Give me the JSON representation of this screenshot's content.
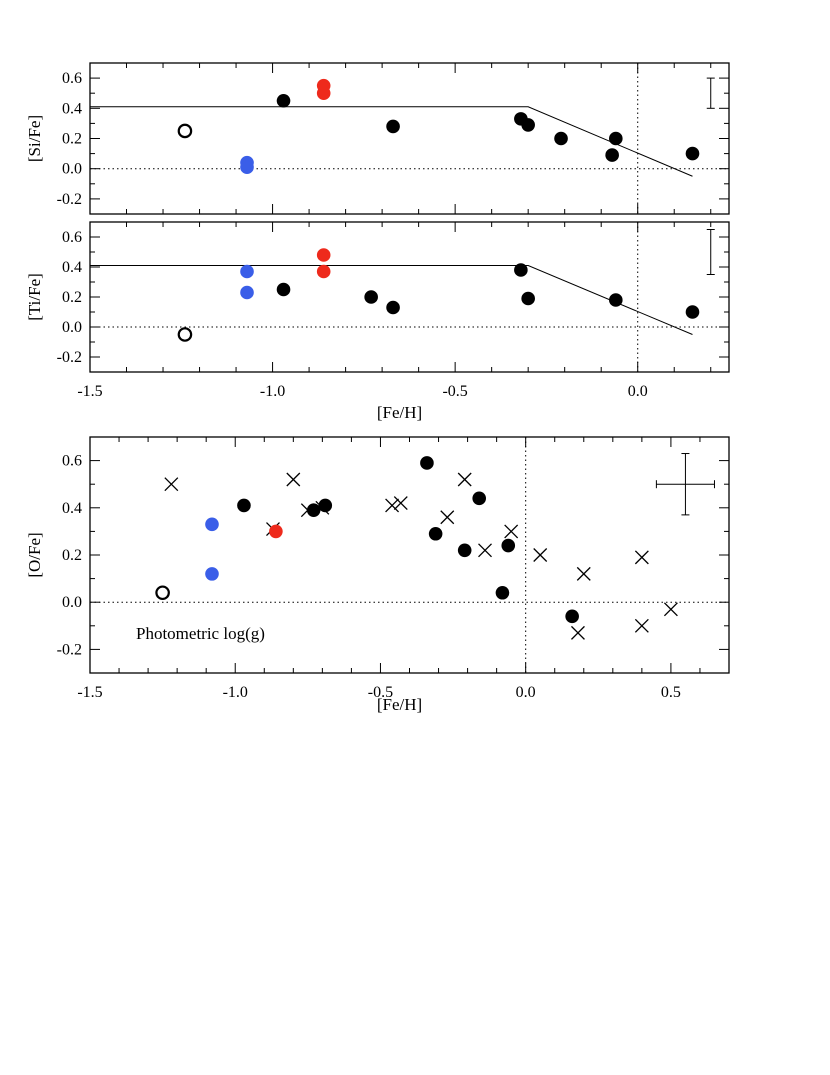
{
  "colors": {
    "black": "#000000",
    "blue": "#3a5ee8",
    "red": "#ee2a1c",
    "open": "#ffffff"
  },
  "chart_data": [
    {
      "type": "scatter",
      "id": "si",
      "title": "",
      "xlabel": "",
      "ylabel": "[Si/Fe]",
      "xlim": [
        -1.5,
        0.25
      ],
      "ylim": [
        -0.3,
        0.7
      ],
      "xticks": [
        -1.5,
        -1.0,
        -0.5,
        0.0
      ],
      "xtick_labels": [
        "",
        "",
        "",
        ""
      ],
      "yticks": [
        -0.2,
        0.0,
        0.2,
        0.4,
        0.6
      ],
      "ytick_labels": [
        "-0.2",
        "0.0",
        "0.2",
        "0.4",
        "0.6"
      ],
      "reference_lines": {
        "y": 0.0,
        "x": 0.0
      },
      "model_line": [
        [
          -1.5,
          0.41
        ],
        [
          -0.3,
          0.41
        ],
        [
          0.15,
          -0.05
        ]
      ],
      "error_bar": {
        "x": 0.2,
        "y_low": 0.4,
        "y_high": 0.6
      },
      "series": [
        {
          "name": "black",
          "marker": "filled",
          "color": "black",
          "points": [
            [
              -0.97,
              0.45
            ],
            [
              -0.67,
              0.28
            ],
            [
              -0.32,
              0.33
            ],
            [
              -0.3,
              0.29
            ],
            [
              -0.21,
              0.2
            ],
            [
              -0.07,
              0.09
            ],
            [
              -0.06,
              0.2
            ],
            [
              0.15,
              0.1
            ]
          ]
        },
        {
          "name": "blue",
          "marker": "filled",
          "color": "blue",
          "points": [
            [
              -1.07,
              0.04
            ],
            [
              -1.07,
              0.01
            ]
          ]
        },
        {
          "name": "red",
          "marker": "filled",
          "color": "red",
          "points": [
            [
              -0.86,
              0.55
            ],
            [
              -0.86,
              0.5
            ]
          ]
        },
        {
          "name": "open",
          "marker": "open",
          "color": "black",
          "points": [
            [
              -1.24,
              0.25
            ]
          ]
        }
      ]
    },
    {
      "type": "scatter",
      "id": "ti",
      "title": "",
      "xlabel": "[Fe/H]",
      "ylabel": "[Ti/Fe]",
      "xlim": [
        -1.5,
        0.25
      ],
      "ylim": [
        -0.3,
        0.7
      ],
      "xticks": [
        -1.5,
        -1.0,
        -0.5,
        0.0
      ],
      "xtick_labels": [
        "-1.5",
        "-1.0",
        "-0.5",
        "0.0"
      ],
      "yticks": [
        -0.2,
        0.0,
        0.2,
        0.4,
        0.6
      ],
      "ytick_labels": [
        "-0.2",
        "0.0",
        "0.2",
        "0.4",
        "0.6"
      ],
      "reference_lines": {
        "y": 0.0,
        "x": 0.0
      },
      "model_line": [
        [
          -1.5,
          0.41
        ],
        [
          -0.3,
          0.41
        ],
        [
          0.15,
          -0.05
        ]
      ],
      "error_bar": {
        "x": 0.2,
        "y_low": 0.35,
        "y_high": 0.65
      },
      "series": [
        {
          "name": "black",
          "marker": "filled",
          "color": "black",
          "points": [
            [
              -0.97,
              0.25
            ],
            [
              -0.73,
              0.2
            ],
            [
              -0.67,
              0.13
            ],
            [
              -0.32,
              0.38
            ],
            [
              -0.3,
              0.19
            ],
            [
              -0.06,
              0.18
            ],
            [
              0.15,
              0.1
            ]
          ]
        },
        {
          "name": "blue",
          "marker": "filled",
          "color": "blue",
          "points": [
            [
              -1.07,
              0.37
            ],
            [
              -1.07,
              0.23
            ]
          ]
        },
        {
          "name": "red",
          "marker": "filled",
          "color": "red",
          "points": [
            [
              -0.86,
              0.48
            ],
            [
              -0.86,
              0.37
            ]
          ]
        },
        {
          "name": "open",
          "marker": "open",
          "color": "black",
          "points": [
            [
              -1.24,
              -0.05
            ]
          ]
        }
      ]
    },
    {
      "type": "scatter",
      "id": "o",
      "title": "",
      "xlabel": "[Fe/H]",
      "ylabel": "[O/Fe]",
      "annotation": "Photometric log(g)",
      "xlim": [
        -1.5,
        0.7
      ],
      "ylim": [
        -0.3,
        0.7
      ],
      "xticks": [
        -1.5,
        -1.0,
        -0.5,
        0.0,
        0.5
      ],
      "xtick_labels": [
        "-1.5",
        "-1.0",
        "-0.5",
        "0.0",
        "0.5"
      ],
      "yticks": [
        -0.2,
        0.0,
        0.2,
        0.4,
        0.6
      ],
      "ytick_labels": [
        "-0.2",
        "0.0",
        "0.2",
        "0.4",
        "0.6"
      ],
      "reference_lines": {
        "y": 0.0,
        "x": 0.0
      },
      "error_bar": {
        "x": 0.55,
        "y_low": 0.37,
        "y_high": 0.63,
        "x_low": 0.45,
        "x_high": 0.65,
        "y": 0.5
      },
      "series": [
        {
          "name": "black",
          "marker": "filled",
          "color": "black",
          "points": [
            [
              -0.97,
              0.41
            ],
            [
              -0.73,
              0.39
            ],
            [
              -0.69,
              0.41
            ],
            [
              -0.34,
              0.59
            ],
            [
              -0.31,
              0.29
            ],
            [
              -0.21,
              0.22
            ],
            [
              -0.16,
              0.44
            ],
            [
              -0.08,
              0.04
            ],
            [
              -0.06,
              0.24
            ],
            [
              0.16,
              -0.06
            ]
          ]
        },
        {
          "name": "blue",
          "marker": "filled",
          "color": "blue",
          "points": [
            [
              -1.08,
              0.33
            ],
            [
              -1.08,
              0.12
            ]
          ]
        },
        {
          "name": "red",
          "marker": "filled",
          "color": "red",
          "points": [
            [
              -0.86,
              0.3
            ]
          ]
        },
        {
          "name": "open",
          "marker": "open",
          "color": "black",
          "points": [
            [
              -1.25,
              0.04
            ]
          ]
        },
        {
          "name": "literature",
          "marker": "cross",
          "color": "black",
          "points": [
            [
              -1.22,
              0.5
            ],
            [
              -0.87,
              0.31
            ],
            [
              -0.8,
              0.52
            ],
            [
              -0.75,
              0.39
            ],
            [
              -0.7,
              0.4
            ],
            [
              -0.46,
              0.41
            ],
            [
              -0.43,
              0.42
            ],
            [
              -0.27,
              0.36
            ],
            [
              -0.21,
              0.52
            ],
            [
              -0.14,
              0.22
            ],
            [
              -0.05,
              0.3
            ],
            [
              0.05,
              0.2
            ],
            [
              0.18,
              -0.13
            ],
            [
              0.2,
              0.12
            ],
            [
              0.4,
              0.19
            ],
            [
              0.4,
              -0.1
            ],
            [
              0.5,
              -0.03
            ]
          ]
        }
      ]
    }
  ]
}
